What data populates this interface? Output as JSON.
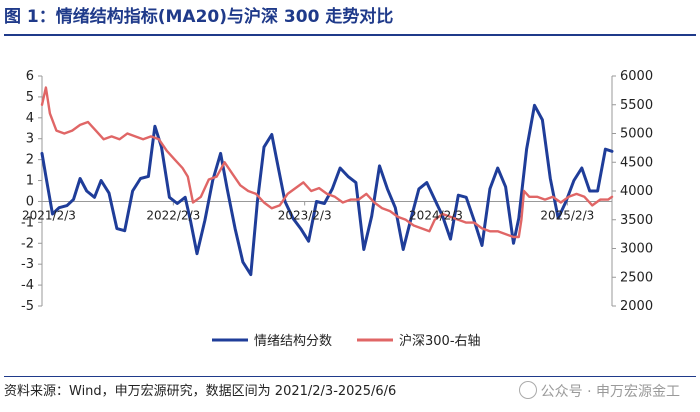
{
  "header": {
    "title": "图 1：情绪结构指标(MA20)与沪深 300 走势对比"
  },
  "footer": {
    "source": "资料来源：Wind，申万宏源研究，数据区间为 2021/2/3-2025/6/6",
    "watermark": "公众号 · 申万宏源金工"
  },
  "colors": {
    "sentiment": "#1f3d99",
    "hs300": "#e06666",
    "axis": "#999999"
  },
  "chart_data": {
    "type": "line",
    "title": "情绪结构指标(MA20)与沪深 300 走势对比",
    "x_ticks": [
      "2021/2/3",
      "2022/2/3",
      "2023/2/3",
      "2024/2/3",
      "2025/2/3"
    ],
    "x_range": [
      "2021/2/3",
      "2025/6/6"
    ],
    "y_left": {
      "ticks": [
        -5,
        -4,
        -3,
        -2,
        -1,
        0,
        1,
        2,
        3,
        4,
        5,
        6
      ],
      "range": [
        -5,
        6
      ]
    },
    "y_right": {
      "ticks": [
        2000,
        2500,
        3000,
        3500,
        4000,
        4500,
        5000,
        5500,
        6000
      ],
      "range": [
        2000,
        6000
      ]
    },
    "series": [
      {
        "name": "情绪结构分数",
        "axis": "left",
        "x": [
          2021.09,
          2021.12,
          2021.17,
          2021.22,
          2021.28,
          2021.33,
          2021.38,
          2021.43,
          2021.49,
          2021.54,
          2021.6,
          2021.66,
          2021.72,
          2021.78,
          2021.84,
          2021.9,
          2021.95,
          2022.0,
          2022.06,
          2022.12,
          2022.18,
          2022.22,
          2022.27,
          2022.33,
          2022.39,
          2022.45,
          2022.5,
          2022.56,
          2022.62,
          2022.68,
          2022.73,
          2022.78,
          2022.84,
          2022.88,
          2022.94,
          2023.0,
          2023.06,
          2023.12,
          2023.18,
          2023.24,
          2023.3,
          2023.36,
          2023.42,
          2023.48,
          2023.54,
          2023.6,
          2023.66,
          2023.72,
          2023.78,
          2023.84,
          2023.9,
          2023.96,
          2024.02,
          2024.08,
          2024.14,
          2024.2,
          2024.26,
          2024.32,
          2024.38,
          2024.44,
          2024.5,
          2024.56,
          2024.62,
          2024.68,
          2024.72,
          2024.78,
          2024.84,
          2024.9,
          2024.96,
          2025.02,
          2025.08,
          2025.14,
          2025.2,
          2025.26,
          2025.32,
          2025.38,
          2025.43
        ],
        "values": [
          2.3,
          1.2,
          -0.6,
          -0.3,
          -0.2,
          0.1,
          1.1,
          0.5,
          0.2,
          1.0,
          0.4,
          -1.3,
          -1.4,
          0.5,
          1.1,
          1.2,
          3.6,
          2.6,
          0.2,
          -0.1,
          0.2,
          -0.9,
          -2.5,
          -0.9,
          1.0,
          2.3,
          0.6,
          -1.3,
          -2.9,
          -3.5,
          0.0,
          2.6,
          3.2,
          1.9,
          0.0,
          -0.8,
          -1.3,
          -1.9,
          0.0,
          -0.1,
          0.6,
          1.6,
          1.2,
          0.9,
          -2.3,
          -0.7,
          1.7,
          0.6,
          -0.3,
          -2.3,
          -0.8,
          0.6,
          0.9,
          0.1,
          -0.7,
          -1.8,
          0.3,
          0.2,
          -0.9,
          -2.1,
          0.6,
          1.6,
          0.7,
          -2.0,
          -0.8,
          2.5,
          4.6,
          3.9,
          1.1,
          -0.8,
          0.0,
          1.0,
          1.6,
          0.5,
          0.5,
          2.5,
          2.4
        ]
      },
      {
        "name": "沪深300-右轴",
        "axis": "right",
        "x": [
          2021.09,
          2021.12,
          2021.15,
          2021.2,
          2021.26,
          2021.32,
          2021.38,
          2021.44,
          2021.5,
          2021.56,
          2021.62,
          2021.68,
          2021.74,
          2021.8,
          2021.86,
          2021.92,
          2021.98,
          2022.04,
          2022.1,
          2022.16,
          2022.2,
          2022.24,
          2022.3,
          2022.36,
          2022.42,
          2022.48,
          2022.54,
          2022.6,
          2022.66,
          2022.72,
          2022.78,
          2022.84,
          2022.9,
          2022.96,
          2023.02,
          2023.08,
          2023.14,
          2023.2,
          2023.26,
          2023.32,
          2023.38,
          2023.44,
          2023.5,
          2023.56,
          2023.62,
          2023.68,
          2023.74,
          2023.8,
          2023.86,
          2023.92,
          2023.98,
          2024.04,
          2024.08,
          2024.14,
          2024.2,
          2024.26,
          2024.32,
          2024.38,
          2024.44,
          2024.5,
          2024.56,
          2024.62,
          2024.68,
          2024.72,
          2024.74,
          2024.76,
          2024.8,
          2024.86,
          2024.92,
          2024.98,
          2025.04,
          2025.1,
          2025.16,
          2025.22,
          2025.28,
          2025.34,
          2025.4,
          2025.43
        ],
        "values": [
          5500,
          5800,
          5350,
          5050,
          5000,
          5050,
          5150,
          5200,
          5050,
          4900,
          4950,
          4900,
          5000,
          4950,
          4900,
          4950,
          4900,
          4700,
          4550,
          4400,
          4250,
          3800,
          3900,
          4200,
          4250,
          4500,
          4300,
          4100,
          4000,
          3950,
          3800,
          3700,
          3750,
          3950,
          4050,
          4150,
          4000,
          4050,
          3950,
          3900,
          3800,
          3850,
          3850,
          3950,
          3800,
          3700,
          3650,
          3550,
          3500,
          3400,
          3350,
          3300,
          3500,
          3600,
          3550,
          3500,
          3450,
          3450,
          3350,
          3300,
          3300,
          3250,
          3200,
          3200,
          3500,
          4000,
          3900,
          3900,
          3850,
          3900,
          3800,
          3900,
          3950,
          3900,
          3750,
          3850,
          3850,
          3900
        ]
      }
    ],
    "legend": [
      "情绪结构分数",
      "沪深300-右轴"
    ],
    "legend_position": "bottom"
  }
}
